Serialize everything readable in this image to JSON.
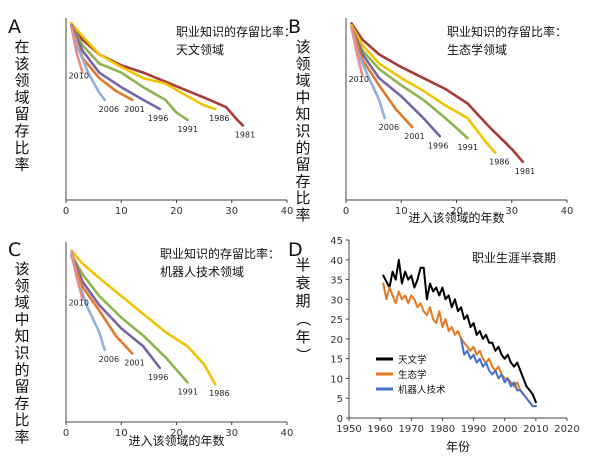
{
  "colors": {
    "1981": "#a83a3a",
    "1986": "#f0c400",
    "1991": "#8db44e",
    "1996": "#7a64a8",
    "2001": "#e07a2a",
    "2006": "#92b1d8",
    "2010": "#e88c8c",
    "astronomy_hl": "#000000",
    "ecology_hl": "#e87722",
    "robotics_hl": "#4472c4"
  },
  "chart_data": [
    {
      "panel_label": "A",
      "type": "line",
      "title": "职业知识的存留比率：",
      "subtitle": "天文领域",
      "ylabel": "在该领域留存比率",
      "xlabel": "",
      "xlim": [
        0,
        40
      ],
      "ylim": [
        0,
        1
      ],
      "xticks": [
        "0",
        "10",
        "20",
        "30",
        "40"
      ],
      "series": [
        {
          "name": "1981",
          "x": [
            1,
            3,
            6,
            10,
            14,
            18,
            22,
            26,
            29,
            31,
            32
          ],
          "y": [
            0.97,
            0.88,
            0.8,
            0.74,
            0.7,
            0.65,
            0.6,
            0.55,
            0.51,
            0.44,
            0.41
          ]
        },
        {
          "name": "1986",
          "x": [
            1,
            3,
            6,
            10,
            14,
            18,
            22,
            25,
            27
          ],
          "y": [
            0.97,
            0.9,
            0.8,
            0.73,
            0.67,
            0.64,
            0.57,
            0.52,
            0.5
          ]
        },
        {
          "name": "1991",
          "x": [
            1,
            3,
            6,
            10,
            14,
            18,
            20,
            22
          ],
          "y": [
            0.96,
            0.85,
            0.75,
            0.7,
            0.62,
            0.55,
            0.48,
            0.44
          ]
        },
        {
          "name": "1996",
          "x": [
            1,
            3,
            6,
            10,
            14,
            17
          ],
          "y": [
            0.96,
            0.82,
            0.7,
            0.62,
            0.55,
            0.5
          ]
        },
        {
          "name": "2001",
          "x": [
            1,
            3,
            6,
            9,
            12
          ],
          "y": [
            0.95,
            0.78,
            0.67,
            0.6,
            0.55
          ]
        },
        {
          "name": "2006",
          "x": [
            1,
            2,
            4,
            6,
            7
          ],
          "y": [
            0.95,
            0.85,
            0.7,
            0.59,
            0.55
          ]
        },
        {
          "name": "2010",
          "x": [
            1,
            2,
            3
          ],
          "y": [
            0.95,
            0.8,
            0.7
          ]
        }
      ]
    },
    {
      "panel_label": "B",
      "type": "line",
      "title": "职业知识的存留比率：",
      "subtitle": "生态学领域",
      "ylabel": "该领域中知识的留存比率",
      "xlabel": "进入该领域的年数",
      "xlim": [
        0,
        40
      ],
      "ylim": [
        0,
        1
      ],
      "xticks": [
        "0",
        "10",
        "20",
        "30",
        "40"
      ],
      "series": [
        {
          "name": "1981",
          "x": [
            1,
            3,
            6,
            10,
            14,
            18,
            22,
            26,
            30,
            32
          ],
          "y": [
            0.97,
            0.88,
            0.8,
            0.73,
            0.67,
            0.61,
            0.53,
            0.4,
            0.28,
            0.21
          ]
        },
        {
          "name": "1986",
          "x": [
            1,
            3,
            6,
            10,
            14,
            18,
            22,
            25,
            27
          ],
          "y": [
            0.96,
            0.85,
            0.75,
            0.67,
            0.6,
            0.52,
            0.45,
            0.33,
            0.26
          ]
        },
        {
          "name": "1991",
          "x": [
            1,
            3,
            6,
            10,
            14,
            18,
            22
          ],
          "y": [
            0.95,
            0.82,
            0.72,
            0.63,
            0.55,
            0.45,
            0.34
          ]
        },
        {
          "name": "1996",
          "x": [
            1,
            3,
            6,
            10,
            14,
            17
          ],
          "y": [
            0.95,
            0.8,
            0.67,
            0.57,
            0.45,
            0.35
          ]
        },
        {
          "name": "2001",
          "x": [
            1,
            3,
            6,
            9,
            12
          ],
          "y": [
            0.95,
            0.77,
            0.63,
            0.5,
            0.4
          ]
        },
        {
          "name": "2006",
          "x": [
            1,
            2,
            4,
            6,
            7
          ],
          "y": [
            0.95,
            0.82,
            0.68,
            0.55,
            0.45
          ]
        },
        {
          "name": "2010",
          "x": [
            1,
            2,
            3
          ],
          "y": [
            0.95,
            0.8,
            0.68
          ]
        }
      ]
    },
    {
      "panel_label": "C",
      "type": "line",
      "title": "职业知识的存留比率：",
      "subtitle": "机器人技术领域",
      "ylabel": "该领域中知识的留存比率",
      "xlabel": "进入该领域的年数",
      "xlim": [
        0,
        40
      ],
      "ylim": [
        0,
        1
      ],
      "xticks": [
        "0",
        "10",
        "20",
        "30",
        "40"
      ],
      "series": [
        {
          "name": "1986",
          "x": [
            1,
            3,
            6,
            10,
            14,
            18,
            22,
            25,
            27
          ],
          "y": [
            0.95,
            0.88,
            0.8,
            0.7,
            0.6,
            0.5,
            0.42,
            0.32,
            0.21
          ]
        },
        {
          "name": "1991",
          "x": [
            1,
            3,
            6,
            10,
            14,
            18,
            22
          ],
          "y": [
            0.93,
            0.82,
            0.7,
            0.58,
            0.48,
            0.36,
            0.22
          ]
        },
        {
          "name": "1996",
          "x": [
            1,
            3,
            6,
            10,
            14,
            17
          ],
          "y": [
            0.93,
            0.78,
            0.65,
            0.52,
            0.42,
            0.3
          ]
        },
        {
          "name": "2001",
          "x": [
            1,
            3,
            6,
            9,
            12
          ],
          "y": [
            0.92,
            0.75,
            0.62,
            0.48,
            0.38
          ]
        },
        {
          "name": "2006",
          "x": [
            1,
            2,
            4,
            6,
            7
          ],
          "y": [
            0.93,
            0.8,
            0.63,
            0.5,
            0.4
          ]
        },
        {
          "name": "2010",
          "x": [
            1,
            2,
            3
          ],
          "y": [
            0.95,
            0.8,
            0.68
          ]
        }
      ]
    },
    {
      "panel_label": "D",
      "type": "line",
      "title": "职业生涯半衰期",
      "ylabel": "半衰期（年）",
      "xlabel": "年份",
      "xlim": [
        1950,
        2020
      ],
      "ylim": [
        0,
        45
      ],
      "xticks": [
        "1950",
        "1960",
        "1970",
        "1980",
        "1990",
        "2000",
        "2010",
        "2020"
      ],
      "yticks": [
        "0",
        "5",
        "10",
        "15",
        "20",
        "25",
        "30",
        "35",
        "40",
        "45"
      ],
      "series": [
        {
          "name": "天文学",
          "x": [
            1961,
            1963,
            1964,
            1965,
            1966,
            1967,
            1968,
            1969,
            1970,
            1971,
            1972,
            1973,
            1974,
            1975,
            1976,
            1977,
            1978,
            1979,
            1980,
            1981,
            1982,
            1983,
            1984,
            1985,
            1986,
            1987,
            1988,
            1989,
            1990,
            1991,
            1992,
            1993,
            1994,
            1995,
            1996,
            1997,
            1998,
            1999,
            2000,
            2001,
            2002,
            2003,
            2004,
            2005,
            2006,
            2007,
            2008,
            2009,
            2010
          ],
          "y": [
            36,
            33,
            37,
            35,
            40,
            34,
            37,
            35,
            36,
            33,
            35,
            38,
            38,
            30,
            34,
            32,
            33,
            31,
            33,
            30,
            31,
            28,
            30,
            27,
            28,
            25,
            26,
            23,
            24,
            21,
            22,
            20,
            21,
            19,
            19,
            17,
            18,
            16,
            15,
            16,
            14,
            13,
            14,
            12,
            10,
            8,
            7,
            6,
            4
          ]
        },
        {
          "name": "生态学",
          "x": [
            1961,
            1962,
            1963,
            1964,
            1965,
            1966,
            1967,
            1968,
            1969,
            1970,
            1971,
            1972,
            1973,
            1974,
            1975,
            1976,
            1977,
            1978,
            1979,
            1980,
            1981,
            1982,
            1983,
            1984,
            1985,
            1986,
            1987,
            1988,
            1989,
            1990,
            1991,
            1992,
            1993,
            1994,
            1995,
            1996,
            1997,
            1998,
            1999,
            2000,
            2001,
            2002,
            2003,
            2004,
            2005,
            2006,
            2007,
            2008,
            2009,
            2010
          ],
          "y": [
            34,
            30,
            33,
            31,
            29,
            32,
            30,
            31,
            29,
            31,
            30,
            28,
            29,
            27,
            26,
            28,
            25,
            24,
            27,
            23,
            25,
            22,
            23,
            21,
            22,
            20,
            19,
            18,
            17,
            18,
            16,
            17,
            15,
            14,
            15,
            13,
            12,
            13,
            11,
            10,
            10,
            9,
            8,
            9,
            7,
            6,
            5,
            4,
            3,
            3
          ]
        },
        {
          "name": "机器人技术",
          "x": [
            1986,
            1987,
            1988,
            1989,
            1990,
            1991,
            1992,
            1993,
            1994,
            1995,
            1996,
            1997,
            1998,
            1999,
            2000,
            2001,
            2002,
            2003,
            2004,
            2005,
            2006,
            2007,
            2008,
            2009,
            2010
          ],
          "y": [
            20,
            16,
            17,
            15,
            16,
            14,
            15,
            13,
            14,
            12,
            11,
            12,
            10,
            11,
            9,
            10,
            8,
            9,
            7,
            7,
            6,
            5,
            4,
            3,
            3
          ]
        }
      ]
    }
  ]
}
